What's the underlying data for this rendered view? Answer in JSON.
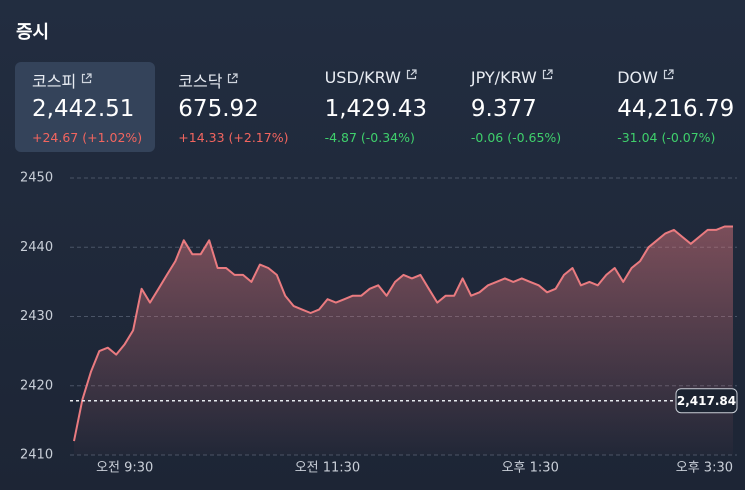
{
  "header": {
    "title": "증시"
  },
  "tickers": [
    {
      "name": "코스피",
      "value": "2,442.51",
      "change": "+24.67 (+1.02%)",
      "color": "#f2655f",
      "selected": true
    },
    {
      "name": "코스닥",
      "value": "675.92",
      "change": "+14.33 (+2.17%)",
      "color": "#f2655f",
      "selected": false
    },
    {
      "name": "USD/KRW",
      "value": "1,429.43",
      "change": "-4.87 (-0.34%)",
      "color": "#3fd06c",
      "selected": false
    },
    {
      "name": "JPY/KRW",
      "value": "9.377",
      "change": "-0.06 (-0.65%)",
      "color": "#3fd06c",
      "selected": false
    },
    {
      "name": "DOW",
      "value": "44,216.79",
      "change": "-31.04 (-0.07%)",
      "color": "#3fd06c",
      "selected": false
    }
  ],
  "chart_data": {
    "type": "area",
    "color": "#ea7b80",
    "grid": true,
    "categories": [
      null,
      null,
      null,
      null,
      null,
      null,
      "오전 9:30",
      null,
      null,
      null,
      null,
      null,
      null,
      null,
      null,
      null,
      null,
      null,
      null,
      null,
      null,
      null,
      null,
      null,
      null,
      null,
      null,
      null,
      null,
      null,
      "오전 11:30",
      null,
      null,
      null,
      null,
      null,
      null,
      null,
      null,
      null,
      null,
      null,
      null,
      null,
      null,
      null,
      null,
      null,
      null,
      null,
      null,
      null,
      null,
      null,
      "오후 1:30",
      null,
      null,
      null,
      null,
      null,
      null,
      null,
      null,
      null,
      null,
      null,
      null,
      null,
      null,
      null,
      null,
      null,
      null,
      null,
      null,
      null,
      null,
      null,
      "오후 3:30"
    ],
    "values": [
      2412,
      2418,
      2422,
      2425,
      2425.5,
      2424.5,
      2426,
      2428,
      2434,
      2432,
      2434,
      2436,
      2438,
      2441,
      2439,
      2439,
      2441,
      2437,
      2437,
      2436,
      2436,
      2435,
      2437.5,
      2437,
      2436,
      2433,
      2431.5,
      2431,
      2430.5,
      2431,
      2432.5,
      2432,
      2432.5,
      2433,
      2433,
      2434,
      2434.5,
      2433,
      2435,
      2436,
      2435.5,
      2436,
      2434,
      2432,
      2433,
      2433,
      2435.5,
      2433,
      2433.5,
      2434.5,
      2435,
      2435.5,
      2435,
      2435.5,
      2435,
      2434.5,
      2433.5,
      2434,
      2436,
      2437,
      2434.5,
      2435,
      2434.5,
      2436,
      2437,
      2435,
      2437,
      2438,
      2440,
      2441,
      2442,
      2442.5,
      2441.5,
      2440.5,
      2441.5,
      2442.5,
      2442.5,
      2443,
      2443
    ],
    "ylim": [
      2410,
      2450
    ],
    "yticks": [
      2410,
      2420,
      2430,
      2440,
      2450
    ],
    "reference_line": {
      "value": 2417.84,
      "label": "2,417.84"
    }
  }
}
